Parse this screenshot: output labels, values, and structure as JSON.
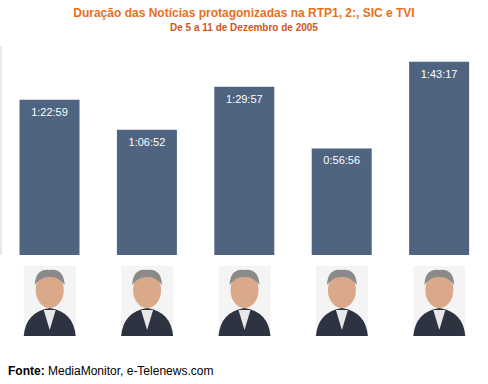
{
  "chart_data": {
    "type": "bar",
    "title": "Duração das Notícias protagonizadas na RTP1, 2:, SIC e TVI",
    "subtitle": "De 5 a 11 de Dezembro de 2005",
    "categories": [
      null,
      null,
      null,
      null,
      null
    ],
    "values": [
      4979,
      4012,
      5397,
      3416,
      6197
    ],
    "value_labels": [
      "1:22:59",
      "1:06:52",
      "1:29:57",
      "0:56:56",
      "1:43:17"
    ],
    "color": "#4e6480",
    "ylim": [
      0,
      6700
    ],
    "data_labels": true,
    "tick_labels": false,
    "grid": false,
    "annotations": {
      "source_label": "Fonte:",
      "source": "MediaMonitor, e-Telenews.com"
    }
  }
}
